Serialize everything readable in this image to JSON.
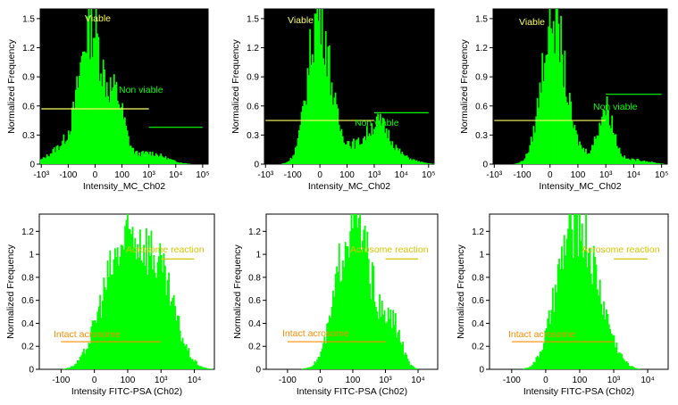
{
  "chart_data": [
    {
      "type": "histogram",
      "xlabel": "Intensity_MC_Ch02",
      "ylabel": "Normalized Frequency",
      "x_ticks": [
        "-10³",
        "-100",
        "0",
        "100",
        "10³",
        "10⁴",
        "10⁵"
      ],
      "y_ticks": [
        "0",
        "0.3",
        "0.6",
        "0.9",
        "1.2",
        "1.5"
      ],
      "ylim": [
        0,
        1.6
      ],
      "x_scale": "biexponential",
      "background": "#000000",
      "bar_color": "#00ff00",
      "peaks": [
        {
          "x": "0",
          "y": 1.5
        },
        {
          "x": "10³",
          "y": 0.6
        }
      ],
      "gates": [
        {
          "label": "Viable",
          "color": "#ffff66",
          "level": 0.57,
          "x_range": [
            "-10³",
            "10³"
          ]
        },
        {
          "label": "Non viable",
          "color": "#00ff00",
          "level": 0.38,
          "x_range": [
            "10³",
            "10⁵"
          ]
        }
      ]
    },
    {
      "type": "histogram",
      "xlabel": "Intensity_MC_Ch02",
      "ylabel": "Normalized Frequency",
      "x_ticks": [
        "-10³",
        "-100",
        "0",
        "100",
        "10³",
        "10⁴",
        "10⁵"
      ],
      "y_ticks": [
        "0",
        "0.3",
        "0.6",
        "0.9",
        "1.2",
        "1.5"
      ],
      "ylim": [
        0,
        1.6
      ],
      "x_scale": "biexponential",
      "background": "#000000",
      "bar_color": "#00ff00",
      "peaks": [
        {
          "x": "0",
          "y": 1.6
        },
        {
          "x": "10³",
          "y": 0.4
        }
      ],
      "gates": [
        {
          "label": "Viable",
          "color": "#ffff66",
          "level": 0.45,
          "x_range": [
            "-10³",
            "10³"
          ]
        },
        {
          "label": "Non viable",
          "color": "#00ff00",
          "level": 0.53,
          "x_range": [
            "10³",
            "10⁵"
          ]
        }
      ]
    },
    {
      "type": "histogram",
      "xlabel": "Intensity_MC_Ch02",
      "ylabel": "Normalized Frequency",
      "x_ticks": [
        "-10³",
        "-100",
        "0",
        "100",
        "10³",
        "10⁴",
        "10⁵"
      ],
      "y_ticks": [
        "0",
        "0.3",
        "0.6",
        "0.9",
        "1.2",
        "1.5"
      ],
      "ylim": [
        0,
        1.6
      ],
      "x_scale": "biexponential",
      "background": "#000000",
      "bar_color": "#00ff00",
      "peaks": [
        {
          "x": "0",
          "y": 1.6
        },
        {
          "x": "10³",
          "y": 0.58
        }
      ],
      "gates": [
        {
          "label": "Viable",
          "color": "#ffff66",
          "level": 0.45,
          "x_range": [
            "-10³",
            "10³"
          ]
        },
        {
          "label": "Non viable",
          "color": "#00ff00",
          "level": 0.72,
          "x_range": [
            "10³",
            "10⁵"
          ]
        }
      ]
    },
    {
      "type": "histogram",
      "xlabel": "Intensity FITC-PSA (Ch02)",
      "ylabel": "Normalized Frequency",
      "x_ticks": [
        "-100",
        "0",
        "100",
        "10³",
        "10⁴"
      ],
      "y_ticks": [
        "0",
        "0.2",
        "0.4",
        "0.6",
        "0.8",
        "1",
        "1.2"
      ],
      "ylim": [
        0,
        1.35
      ],
      "x_scale": "biexponential",
      "background": "#ffffff",
      "bar_color": "#00ff00",
      "peaks": [
        {
          "x": "100",
          "y": 1.2
        }
      ],
      "gates": [
        {
          "label": "Acrosome reaction",
          "color": "#d4c400",
          "level": 0.96,
          "x_range": [
            "10³",
            "10⁴"
          ]
        },
        {
          "label": "Intact acrosome",
          "color": "#ff8c00",
          "level": 0.24,
          "x_range": [
            "-100",
            "10³"
          ]
        }
      ]
    },
    {
      "type": "histogram",
      "xlabel": "Intensity FITC-PSA (Ch02)",
      "ylabel": "Normalized Frequency",
      "x_ticks": [
        "-100",
        "0",
        "100",
        "10³",
        "10⁴"
      ],
      "y_ticks": [
        "0",
        "0.2",
        "0.4",
        "0.6",
        "0.8",
        "1",
        "1.2"
      ],
      "ylim": [
        0,
        1.35
      ],
      "x_scale": "biexponential",
      "background": "#ffffff",
      "bar_color": "#00ff00",
      "peaks": [
        {
          "x": "100",
          "y": 1.35
        },
        {
          "x": "10³",
          "y": 0.4
        }
      ],
      "gates": [
        {
          "label": "Acrosome reaction",
          "color": "#d4c400",
          "level": 0.96,
          "x_range": [
            "10³",
            "10⁴"
          ]
        },
        {
          "label": "Intact acrosome",
          "color": "#ff8c00",
          "level": 0.24,
          "x_range": [
            "-100",
            "10³"
          ]
        }
      ]
    },
    {
      "type": "histogram",
      "xlabel": "Intensity FITC-PSA (Ch02)",
      "ylabel": "Normalized Frequency",
      "x_ticks": [
        "-100",
        "0",
        "100",
        "10³",
        "10⁴"
      ],
      "y_ticks": [
        "0",
        "0.2",
        "0.4",
        "0.6",
        "0.8",
        "1",
        "1.2"
      ],
      "ylim": [
        0,
        1.35
      ],
      "x_scale": "biexponential",
      "background": "#ffffff",
      "bar_color": "#00ff00",
      "peaks": [
        {
          "x": "100",
          "y": 1.35
        }
      ],
      "gates": [
        {
          "label": "Acrosome reaction",
          "color": "#d4c400",
          "level": 0.96,
          "x_range": [
            "10³",
            "10⁴"
          ]
        },
        {
          "label": "Intact acrosome",
          "color": "#ff8c00",
          "level": 0.24,
          "x_range": [
            "-100",
            "10³"
          ]
        }
      ]
    }
  ]
}
